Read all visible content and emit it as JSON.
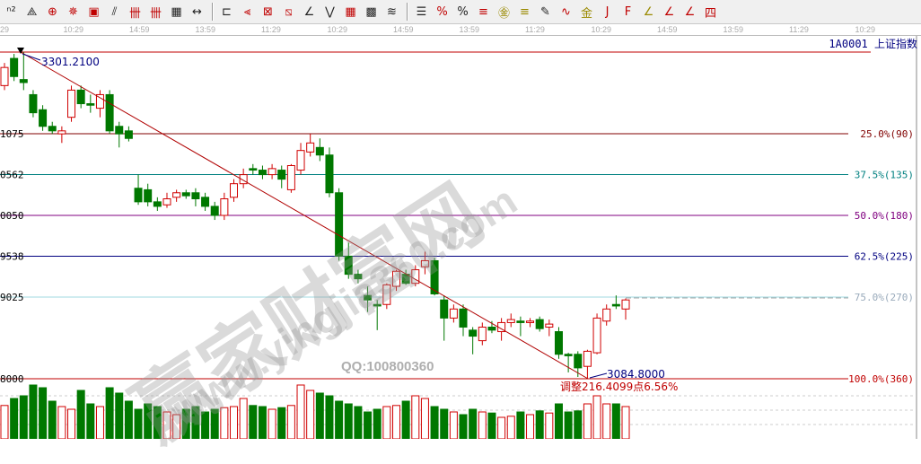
{
  "toolbar": {
    "icons": [
      {
        "name": "n2-icon",
        "glyph": "ⁿ²"
      },
      {
        "name": "triangle-pattern-icon",
        "glyph": "⟁"
      },
      {
        "name": "target-icon",
        "glyph": "⊕",
        "c": "red"
      },
      {
        "name": "gear-radial-icon",
        "glyph": "✵",
        "c": "red"
      },
      {
        "name": "box-grid-icon",
        "glyph": "▣",
        "c": "red"
      },
      {
        "name": "parallel-lines-icon",
        "glyph": "⫽"
      },
      {
        "name": "fib-time-icon",
        "glyph": "卌",
        "c": "red"
      },
      {
        "name": "fib-zone-icon",
        "glyph": "卌",
        "c": "red"
      },
      {
        "name": "ruler-icon",
        "glyph": "▦"
      },
      {
        "name": "measure-icon",
        "glyph": "↔"
      },
      {
        "sep": true
      },
      {
        "name": "rect-tool-icon",
        "glyph": "⊏"
      },
      {
        "name": "fan-lines-icon",
        "glyph": "⫷",
        "c": "red"
      },
      {
        "name": "gann-box-icon",
        "glyph": "⊠",
        "c": "red"
      },
      {
        "name": "gann-fan-icon",
        "glyph": "⧅",
        "c": "red"
      },
      {
        "name": "angle-icon",
        "glyph": "∠"
      },
      {
        "name": "zigzag-icon",
        "glyph": "⋁"
      },
      {
        "name": "grid-icon",
        "glyph": "▦",
        "c": "red"
      },
      {
        "name": "grid-dark-icon",
        "glyph": "▩"
      },
      {
        "name": "parallel-channel-icon",
        "glyph": "≋"
      },
      {
        "sep": true
      },
      {
        "name": "list-icon",
        "glyph": "☰"
      },
      {
        "name": "percent-line-icon",
        "glyph": "%",
        "c": "red"
      },
      {
        "name": "percent-icon",
        "glyph": "%"
      },
      {
        "name": "percent-levels-icon",
        "glyph": "≡",
        "c": "red"
      },
      {
        "name": "gold-circle-icon",
        "glyph": "㊎",
        "c": "gold"
      },
      {
        "name": "gold-levels-icon",
        "glyph": "≡",
        "c": "gold"
      },
      {
        "name": "pen-icon",
        "glyph": "✎"
      },
      {
        "name": "wave-icon",
        "glyph": "∿",
        "c": "red"
      },
      {
        "name": "gold-line-icon",
        "glyph": "金",
        "c": "gold"
      },
      {
        "name": "j-line-icon",
        "glyph": "J",
        "c": "red"
      },
      {
        "name": "f-line-icon",
        "glyph": "F",
        "c": "red"
      },
      {
        "name": "gold-angle-icon",
        "glyph": "∠",
        "c": "gold"
      },
      {
        "name": "char-angle-icon",
        "glyph": "∠",
        "c": "red"
      },
      {
        "name": "char-angle-2-icon",
        "glyph": "∠",
        "c": "red"
      },
      {
        "name": "four-angle-icon",
        "glyph": "四",
        "c": "red"
      }
    ]
  },
  "time_axis": [
    "29",
    "10:29",
    "14:59",
    "13:59",
    "11:29",
    "10:29",
    "14:59",
    "13:59",
    "11:29",
    "10:29",
    "14:59",
    "13:59",
    "11:29",
    "10:29"
  ],
  "symbol": "1A0001 上证指数",
  "watermark": {
    "brand": "赢家财富网",
    "url": "www.yingjia360.com",
    "qq": "QQ:100800360"
  },
  "colors": {
    "up": "#d00000",
    "down": "#007800",
    "trend": "#b00000"
  },
  "chart_data": {
    "type": "candlestick",
    "ylim": [
      3084.8,
      3301.21
    ],
    "high_label": "3301.2100",
    "low_label": "3084.8000",
    "adjust_note": "调整216.4099点6.56%",
    "fib_levels": [
      {
        "price": 3301.21,
        "label": "",
        "axis": "",
        "color": "#c00000"
      },
      {
        "price": 3247.1075,
        "label": "25.0%(90)",
        "axis": "1075",
        "color": "#800000"
      },
      {
        "price": 3220.0562,
        "label": "37.5%(135)",
        "axis": "0562",
        "color": "#008080"
      },
      {
        "price": 3193.005,
        "label": "50.0%(180)",
        "axis": "0050",
        "color": "#800080"
      },
      {
        "price": 3165.9538,
        "label": "62.5%(225)",
        "axis": "9538",
        "color": "#000080"
      },
      {
        "price": 3138.9025,
        "label": "75.0%(270)",
        "axis": "9025",
        "color": "#a0d8e0"
      },
      {
        "price": 3084.8,
        "label": "100.0%(360)",
        "axis": "8000",
        "color": "#c00000"
      }
    ],
    "ohlc": [
      [
        3279,
        3294,
        3276,
        3291
      ],
      [
        3297,
        3300,
        3282,
        3285
      ],
      [
        3283,
        3301.21,
        3276,
        3281
      ],
      [
        3273,
        3276,
        3258,
        3261
      ],
      [
        3263,
        3266,
        3249,
        3252
      ],
      [
        3252,
        3255,
        3247,
        3249
      ],
      [
        3247,
        3252,
        3241,
        3249
      ],
      [
        3258,
        3279,
        3255,
        3276
      ],
      [
        3276,
        3279,
        3264,
        3267
      ],
      [
        3267,
        3273,
        3261,
        3266
      ],
      [
        3264,
        3276,
        3258,
        3273
      ],
      [
        3273,
        3276,
        3247,
        3249
      ],
      [
        3252,
        3255,
        3238,
        3247
      ],
      [
        3249,
        3252,
        3242,
        3244
      ],
      [
        3211,
        3220,
        3200,
        3202
      ],
      [
        3210,
        3214,
        3199,
        3202
      ],
      [
        3202,
        3205,
        3196,
        3199
      ],
      [
        3200,
        3208,
        3198,
        3204
      ],
      [
        3205,
        3210,
        3202,
        3208
      ],
      [
        3208,
        3210,
        3204,
        3206
      ],
      [
        3208,
        3211,
        3199,
        3204
      ],
      [
        3205,
        3208,
        3196,
        3199
      ],
      [
        3199,
        3202,
        3190,
        3193
      ],
      [
        3193,
        3208,
        3190,
        3204
      ],
      [
        3205,
        3217,
        3202,
        3214
      ],
      [
        3214,
        3224,
        3211,
        3220
      ],
      [
        3224,
        3227,
        3220,
        3223
      ],
      [
        3223,
        3226,
        3217,
        3220
      ],
      [
        3220,
        3227,
        3217,
        3224
      ],
      [
        3223,
        3226,
        3211,
        3217
      ],
      [
        3210,
        3227,
        3208,
        3226
      ],
      [
        3223,
        3241,
        3220,
        3236
      ],
      [
        3235,
        3247,
        3232,
        3241
      ],
      [
        3238,
        3244,
        3229,
        3233
      ],
      [
        3233,
        3238,
        3205,
        3208
      ],
      [
        3208,
        3211,
        3163,
        3166
      ],
      [
        3166,
        3175,
        3151,
        3154
      ],
      [
        3154,
        3157,
        3148,
        3151
      ],
      [
        3140,
        3146,
        3129,
        3137
      ],
      [
        3134,
        3137,
        3117,
        3133
      ],
      [
        3134,
        3148,
        3131,
        3147
      ],
      [
        3146,
        3157,
        3143,
        3156
      ],
      [
        3154,
        3157,
        3147,
        3148
      ],
      [
        3148,
        3160,
        3146,
        3157
      ],
      [
        3159,
        3169,
        3154,
        3163
      ],
      [
        3163,
        3165,
        3140,
        3141
      ],
      [
        3137,
        3140,
        3110,
        3125
      ],
      [
        3125,
        3134,
        3122,
        3131
      ],
      [
        3131,
        3134,
        3113,
        3119
      ],
      [
        3117,
        3119,
        3101,
        3113
      ],
      [
        3110,
        3122,
        3107,
        3119
      ],
      [
        3119,
        3123,
        3115,
        3117
      ],
      [
        3116,
        3125,
        3110,
        3122
      ],
      [
        3122,
        3128,
        3119,
        3124
      ],
      [
        3123,
        3126,
        3113,
        3122
      ],
      [
        3122,
        3125,
        3119,
        3123
      ],
      [
        3124,
        3126,
        3116,
        3118
      ],
      [
        3119,
        3124,
        3113,
        3121
      ],
      [
        3116,
        3119,
        3098,
        3101
      ],
      [
        3101,
        3102,
        3089,
        3100
      ],
      [
        3101,
        3103,
        3086,
        3092
      ],
      [
        3093,
        3104,
        3084.8,
        3103
      ],
      [
        3102,
        3128,
        3101,
        3125
      ],
      [
        3123,
        3134,
        3120,
        3131
      ],
      [
        3134,
        3140,
        3131,
        3133
      ],
      [
        3131,
        3138,
        3124,
        3137
      ]
    ],
    "volume": [
      62,
      75,
      80,
      100,
      95,
      70,
      60,
      55,
      90,
      65,
      60,
      95,
      85,
      70,
      55,
      65,
      60,
      50,
      45,
      55,
      60,
      50,
      55,
      58,
      60,
      75,
      62,
      60,
      55,
      58,
      62,
      100,
      90,
      85,
      80,
      70,
      65,
      60,
      50,
      55,
      60,
      62,
      70,
      80,
      75,
      60,
      55,
      50,
      45,
      55,
      50,
      48,
      40,
      42,
      50,
      45,
      52,
      48,
      65,
      50,
      52,
      65,
      80,
      65,
      65,
      60
    ]
  }
}
